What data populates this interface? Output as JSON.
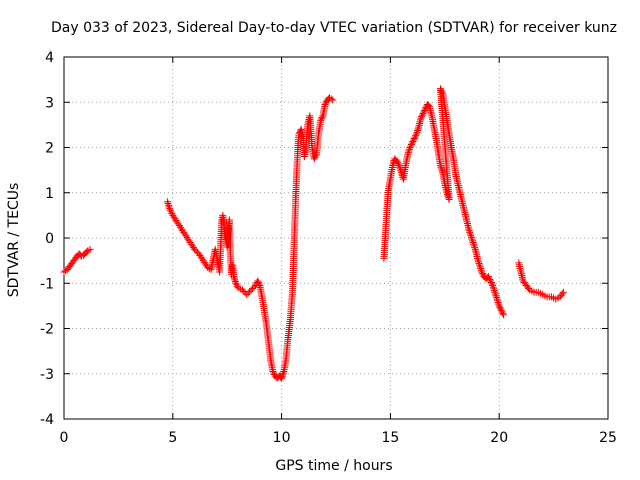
{
  "chart_data": {
    "type": "scatter",
    "title": "Day 033 of 2023, Sidereal Day-to-day VTEC variation (SDTVAR) for receiver kunz",
    "xlabel": "GPS time / hours",
    "ylabel": "SDTVAR / TECUs",
    "xlim": [
      0,
      25
    ],
    "ylim": [
      -4,
      4
    ],
    "xticks": [
      0,
      5,
      10,
      15,
      20,
      25
    ],
    "yticks": [
      -4,
      -3,
      -2,
      -1,
      0,
      1,
      2,
      3,
      4
    ],
    "grid": true,
    "marker": "+",
    "color": "#ff0000",
    "series": [
      {
        "name": "SDTVAR",
        "segments": [
          [
            [
              0.0,
              -0.75
            ],
            [
              0.15,
              -0.7
            ],
            [
              0.3,
              -0.6
            ],
            [
              0.45,
              -0.5
            ],
            [
              0.6,
              -0.4
            ],
            [
              0.7,
              -0.35
            ],
            [
              0.8,
              -0.4
            ],
            [
              0.9,
              -0.38
            ],
            [
              1.0,
              -0.33
            ],
            [
              1.1,
              -0.28
            ],
            [
              1.2,
              -0.25
            ]
          ],
          [
            [
              4.75,
              0.8
            ],
            [
              4.85,
              0.65
            ],
            [
              5.0,
              0.5
            ],
            [
              5.2,
              0.35
            ],
            [
              5.4,
              0.2
            ],
            [
              5.6,
              0.05
            ],
            [
              5.8,
              -0.1
            ],
            [
              6.0,
              -0.25
            ],
            [
              6.2,
              -0.35
            ],
            [
              6.4,
              -0.5
            ],
            [
              6.6,
              -0.65
            ],
            [
              6.75,
              -0.7
            ],
            [
              6.85,
              -0.5
            ],
            [
              6.95,
              -0.25
            ],
            [
              7.05,
              -0.5
            ],
            [
              7.15,
              -0.75
            ],
            [
              7.2,
              -0.2
            ],
            [
              7.25,
              0.4
            ],
            [
              7.3,
              0.5
            ],
            [
              7.35,
              0.3
            ],
            [
              7.4,
              0.05
            ],
            [
              7.5,
              -0.2
            ],
            [
              7.55,
              0.2
            ],
            [
              7.6,
              0.4
            ],
            [
              7.65,
              -0.4
            ],
            [
              7.7,
              -0.8
            ],
            [
              7.75,
              -0.6
            ],
            [
              7.8,
              -0.85
            ],
            [
              7.9,
              -1.0
            ],
            [
              8.0,
              -1.1
            ],
            [
              8.2,
              -1.15
            ],
            [
              8.4,
              -1.25
            ],
            [
              8.6,
              -1.15
            ],
            [
              8.8,
              -1.05
            ],
            [
              8.9,
              -0.95
            ],
            [
              9.0,
              -1.05
            ],
            [
              9.1,
              -1.3
            ],
            [
              9.2,
              -1.6
            ],
            [
              9.3,
              -1.9
            ],
            [
              9.4,
              -2.3
            ],
            [
              9.5,
              -2.7
            ],
            [
              9.6,
              -2.95
            ],
            [
              9.7,
              -3.05
            ],
            [
              9.8,
              -3.1
            ],
            [
              9.9,
              -3.05
            ],
            [
              10.0,
              -3.1
            ],
            [
              10.1,
              -2.95
            ],
            [
              10.2,
              -2.7
            ],
            [
              10.3,
              -2.2
            ],
            [
              10.4,
              -1.8
            ],
            [
              10.5,
              -1.2
            ],
            [
              10.55,
              -0.5
            ],
            [
              10.6,
              0.2
            ],
            [
              10.65,
              0.9
            ],
            [
              10.7,
              1.5
            ],
            [
              10.75,
              2.0
            ],
            [
              10.8,
              2.3
            ],
            [
              10.9,
              2.4
            ],
            [
              11.0,
              2.2
            ],
            [
              11.05,
              1.8
            ],
            [
              11.1,
              1.9
            ],
            [
              11.2,
              2.5
            ],
            [
              11.3,
              2.7
            ],
            [
              11.4,
              2.0
            ],
            [
              11.5,
              1.75
            ],
            [
              11.6,
              1.85
            ],
            [
              11.7,
              2.3
            ],
            [
              11.8,
              2.6
            ],
            [
              11.9,
              2.7
            ],
            [
              12.0,
              2.95
            ],
            [
              12.1,
              3.05
            ],
            [
              12.2,
              3.1
            ],
            [
              12.35,
              3.05
            ]
          ],
          [
            [
              14.7,
              -0.45
            ],
            [
              14.8,
              0.3
            ],
            [
              14.85,
              0.7
            ],
            [
              14.9,
              1.05
            ],
            [
              15.0,
              1.3
            ],
            [
              15.1,
              1.6
            ],
            [
              15.2,
              1.75
            ],
            [
              15.3,
              1.7
            ],
            [
              15.4,
              1.6
            ],
            [
              15.5,
              1.45
            ],
            [
              15.6,
              1.3
            ],
            [
              15.7,
              1.6
            ],
            [
              15.8,
              1.85
            ],
            [
              15.9,
              2.0
            ],
            [
              16.0,
              2.1
            ],
            [
              16.1,
              2.2
            ],
            [
              16.2,
              2.3
            ],
            [
              16.3,
              2.45
            ],
            [
              16.4,
              2.65
            ],
            [
              16.5,
              2.75
            ],
            [
              16.6,
              2.85
            ],
            [
              16.7,
              2.95
            ],
            [
              16.8,
              2.9
            ],
            [
              16.9,
              2.7
            ],
            [
              17.0,
              2.45
            ],
            [
              17.1,
              2.2
            ],
            [
              17.2,
              1.9
            ],
            [
              17.3,
              1.6
            ],
            [
              17.4,
              1.45
            ],
            [
              17.5,
              1.2
            ],
            [
              17.6,
              1.0
            ],
            [
              17.7,
              0.85
            ],
            [
              17.3,
              3.3
            ],
            [
              17.4,
              3.2
            ],
            [
              17.5,
              2.9
            ],
            [
              17.6,
              2.6
            ],
            [
              17.7,
              2.3
            ],
            [
              17.8,
              2.0
            ],
            [
              17.9,
              1.75
            ],
            [
              18.0,
              1.4
            ],
            [
              18.1,
              1.2
            ],
            [
              18.2,
              1.0
            ],
            [
              18.3,
              0.8
            ],
            [
              18.4,
              0.6
            ],
            [
              18.5,
              0.4
            ],
            [
              18.6,
              0.2
            ],
            [
              18.7,
              0.05
            ],
            [
              18.8,
              -0.1
            ],
            [
              18.9,
              -0.25
            ],
            [
              19.0,
              -0.45
            ],
            [
              19.1,
              -0.6
            ],
            [
              19.2,
              -0.75
            ],
            [
              19.3,
              -0.85
            ],
            [
              19.4,
              -0.9
            ],
            [
              19.5,
              -0.85
            ],
            [
              19.6,
              -0.95
            ],
            [
              19.7,
              -1.05
            ],
            [
              19.8,
              -1.2
            ],
            [
              19.9,
              -1.35
            ],
            [
              20.0,
              -1.5
            ],
            [
              20.1,
              -1.6
            ],
            [
              20.2,
              -1.7
            ]
          ],
          [
            [
              20.9,
              -0.55
            ],
            [
              21.0,
              -0.75
            ],
            [
              21.1,
              -0.95
            ],
            [
              21.25,
              -1.05
            ],
            [
              21.4,
              -1.15
            ],
            [
              21.6,
              -1.2
            ],
            [
              21.8,
              -1.2
            ],
            [
              22.0,
              -1.25
            ],
            [
              22.2,
              -1.3
            ],
            [
              22.4,
              -1.3
            ],
            [
              22.6,
              -1.35
            ],
            [
              22.8,
              -1.3
            ],
            [
              22.95,
              -1.2
            ]
          ]
        ]
      }
    ]
  }
}
